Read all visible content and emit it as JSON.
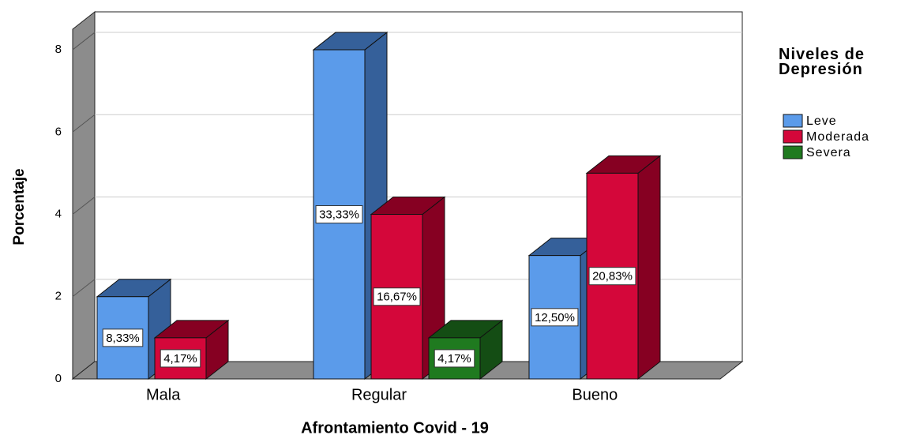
{
  "chart_data": {
    "type": "bar3d",
    "x_label": "Afrontamiento Covid - 19",
    "y_label": "Porcentaje",
    "legend_title": "Niveles de Depresión",
    "categories": [
      "Mala",
      "Regular",
      "Bueno"
    ],
    "series": [
      {
        "name": "Leve",
        "color": "#5b9bea",
        "side_color": "#35609a",
        "values": [
          2,
          8,
          3
        ],
        "value_labels": [
          "8,33%",
          "33,33%",
          "12,50%"
        ]
      },
      {
        "name": "Moderada",
        "color": "#d4073a",
        "side_color": "#860022",
        "values": [
          1,
          4,
          5
        ],
        "value_labels": [
          "4,17%",
          "16,67%",
          "20,83%"
        ]
      },
      {
        "name": "Severa",
        "color": "#1f7a1f",
        "side_color": "#144d14",
        "values": [
          null,
          1,
          null
        ],
        "value_labels": [
          null,
          "4,17%",
          null
        ]
      }
    ],
    "ylim": [
      0,
      8.5
    ],
    "yticks": [
      0,
      2,
      4,
      6,
      8
    ],
    "grid": true,
    "legend": "right"
  }
}
